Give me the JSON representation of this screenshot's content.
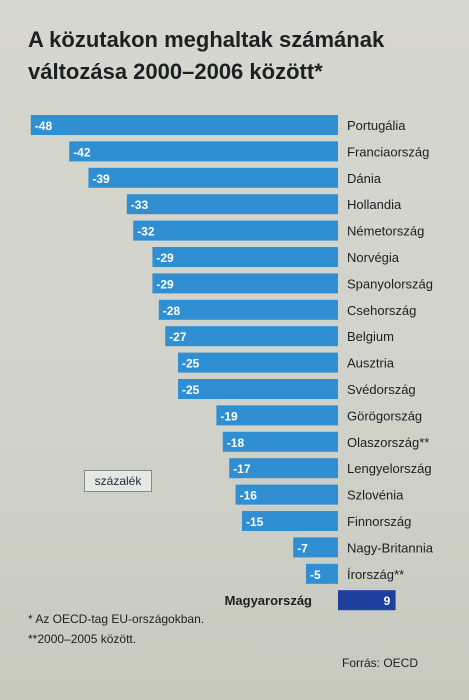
{
  "chart_data": {
    "type": "bar",
    "orientation": "horizontal",
    "title": "A közutakon meghaltak számának változása 2000–2006 között*",
    "unit_label": "százalék",
    "categories": [
      "Portugália",
      "Franciaország",
      "Dánia",
      "Hollandia",
      "Németország",
      "Norvégia",
      "Spanyolország",
      "Csehország",
      "Belgium",
      "Ausztria",
      "Svédország",
      "Görögország",
      "Olaszország**",
      "Lengyelország",
      "Szlovénia",
      "Finnország",
      "Nagy-Britannia",
      "Írország**",
      "Magyarország"
    ],
    "values": [
      -48,
      -42,
      -39,
      -33,
      -32,
      -29,
      -29,
      -28,
      -27,
      -25,
      -25,
      -19,
      -18,
      -17,
      -16,
      -15,
      -7,
      -5,
      9
    ],
    "value_labels": [
      "-48",
      "-42",
      "-39",
      "-33",
      "-32",
      "-29",
      "-29",
      "-28",
      "-27",
      "-25",
      "-25",
      "-19",
      "-18",
      "-17",
      "-16",
      "-15",
      "-7",
      "-5",
      "9"
    ],
    "highlight": "Magyarország",
    "colors": {
      "bar": "#2f8fd2",
      "highlight": "#1f3f9e",
      "label_text": "#ffffff"
    }
  },
  "footnotes": [
    "* Az OECD-tag EU-országokban.",
    "**2000–2005 között."
  ],
  "source": "Forrás: OECD"
}
